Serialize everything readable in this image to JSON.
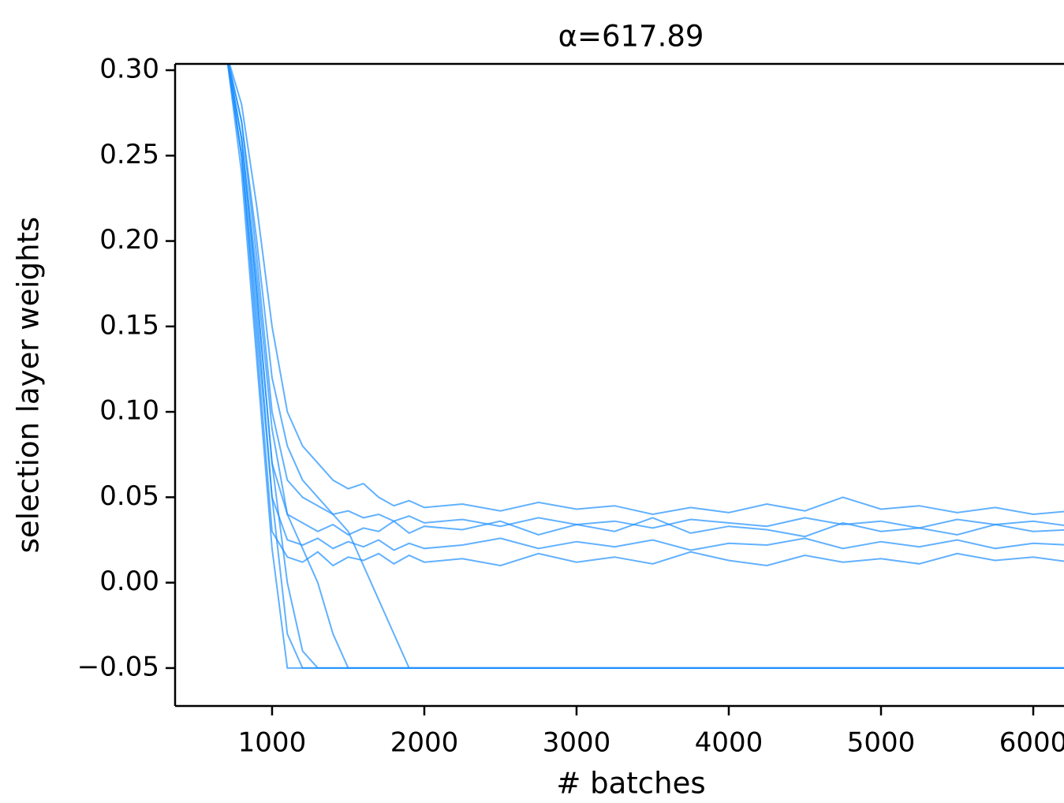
{
  "chart_data": {
    "type": "line",
    "title": "α=617.89",
    "x_label": "# batches",
    "y_label": "selection layer weights",
    "color": "#1e90ff",
    "x": [
      700,
      800,
      900,
      1000,
      1100,
      1200,
      1300,
      1400,
      1500,
      1600,
      1700,
      1800,
      1900,
      2000,
      2250,
      2500,
      2750,
      3000,
      3250,
      3500,
      3750,
      4000,
      4250,
      4500,
      4750,
      5000,
      5250,
      5500,
      5750,
      6000,
      6250
    ],
    "series": [
      {
        "values": [
          0.31,
          0.24,
          0.13,
          0.02,
          -0.05,
          -0.05,
          -0.05,
          -0.05,
          -0.05,
          -0.05,
          -0.05,
          -0.05,
          -0.05,
          -0.05,
          -0.05,
          -0.05,
          -0.05,
          -0.05,
          -0.05,
          -0.05,
          -0.05,
          -0.05,
          -0.05,
          -0.05,
          -0.05,
          -0.05,
          -0.05,
          -0.05,
          -0.05,
          -0.05,
          -0.05
        ]
      },
      {
        "values": [
          0.31,
          0.25,
          0.16,
          0.05,
          -0.03,
          -0.05,
          -0.05,
          -0.05,
          -0.05,
          -0.05,
          -0.05,
          -0.05,
          -0.05,
          -0.05,
          -0.05,
          -0.05,
          -0.05,
          -0.05,
          -0.05,
          -0.05,
          -0.05,
          -0.05,
          -0.05,
          -0.05,
          -0.05,
          -0.05,
          -0.05,
          -0.05,
          -0.05,
          -0.05,
          -0.05
        ]
      },
      {
        "values": [
          0.31,
          0.26,
          0.18,
          0.09,
          0.04,
          0.02,
          0.0,
          -0.03,
          -0.05,
          -0.05,
          -0.05,
          -0.05,
          -0.05,
          -0.05,
          -0.05,
          -0.05,
          -0.05,
          -0.05,
          -0.05,
          -0.05,
          -0.05,
          -0.05,
          -0.05,
          -0.05,
          -0.05,
          -0.05,
          -0.05,
          -0.05,
          -0.05,
          -0.05,
          -0.05
        ]
      },
      {
        "values": [
          0.31,
          0.27,
          0.2,
          0.12,
          0.08,
          0.06,
          0.05,
          0.04,
          0.03,
          0.01,
          -0.01,
          -0.03,
          -0.05,
          -0.05,
          -0.05,
          -0.05,
          -0.05,
          -0.05,
          -0.05,
          -0.05,
          -0.05,
          -0.05,
          -0.05,
          -0.05,
          -0.05,
          -0.05,
          -0.05,
          -0.05,
          -0.05,
          -0.05,
          -0.05
        ]
      },
      {
        "values": [
          0.31,
          0.26,
          0.17,
          0.07,
          0.04,
          0.035,
          0.03,
          0.034,
          0.028,
          0.032,
          0.03,
          0.036,
          0.029,
          0.033,
          0.031,
          0.036,
          0.028,
          0.034,
          0.03,
          0.038,
          0.029,
          0.033,
          0.031,
          0.027,
          0.035,
          0.03,
          0.032,
          0.028,
          0.034,
          0.03,
          0.031
        ]
      },
      {
        "values": [
          0.31,
          0.25,
          0.14,
          0.03,
          0.015,
          0.012,
          0.018,
          0.01,
          0.015,
          0.013,
          0.017,
          0.011,
          0.016,
          0.012,
          0.014,
          0.01,
          0.017,
          0.012,
          0.015,
          0.011,
          0.018,
          0.013,
          0.01,
          0.016,
          0.012,
          0.014,
          0.011,
          0.017,
          0.013,
          0.015,
          0.012
        ]
      },
      {
        "values": [
          0.31,
          0.28,
          0.22,
          0.15,
          0.1,
          0.08,
          0.07,
          0.06,
          0.055,
          0.058,
          0.05,
          0.045,
          0.048,
          0.044,
          0.046,
          0.042,
          0.047,
          0.043,
          0.045,
          0.04,
          0.044,
          0.041,
          0.046,
          0.042,
          0.05,
          0.043,
          0.045,
          0.041,
          0.044,
          0.04,
          0.042
        ]
      },
      {
        "values": [
          0.31,
          0.25,
          0.15,
          0.05,
          0.025,
          0.022,
          0.026,
          0.02,
          0.024,
          0.021,
          0.025,
          0.019,
          0.023,
          0.02,
          0.022,
          0.026,
          0.02,
          0.024,
          0.021,
          0.025,
          0.019,
          0.023,
          0.022,
          0.026,
          0.02,
          0.024,
          0.021,
          0.025,
          0.02,
          0.023,
          0.022
        ]
      },
      {
        "values": [
          0.31,
          0.27,
          0.19,
          0.1,
          0.06,
          0.05,
          0.045,
          0.04,
          0.042,
          0.038,
          0.04,
          0.036,
          0.039,
          0.035,
          0.037,
          0.033,
          0.038,
          0.034,
          0.036,
          0.032,
          0.037,
          0.035,
          0.033,
          0.038,
          0.034,
          0.036,
          0.032,
          0.037,
          0.034,
          0.036,
          0.033
        ]
      },
      {
        "values": [
          0.31,
          0.26,
          0.17,
          0.07,
          0.0,
          -0.04,
          -0.05,
          -0.05,
          -0.05,
          -0.05,
          -0.05,
          -0.05,
          -0.05,
          -0.05,
          -0.05,
          -0.05,
          -0.05,
          -0.05,
          -0.05,
          -0.05,
          -0.05,
          -0.05,
          -0.05,
          -0.05,
          -0.05,
          -0.05,
          -0.05,
          -0.05,
          -0.05,
          -0.05,
          -0.05
        ]
      }
    ],
    "xlim": [
      363,
      6202
    ],
    "xticks": [
      1000,
      2000,
      3000,
      4000,
      5000,
      6000
    ],
    "ylim": [
      -0.0722,
      0.3037
    ],
    "yticks": [
      {
        "value": -0.05,
        "label": "−0.05"
      },
      {
        "value": 0,
        "label": "0.00"
      },
      0.05,
      {
        "value": 0.1,
        "label": "0.10"
      },
      0.15,
      {
        "value": 0.2,
        "label": "0.20"
      },
      0.25,
      {
        "value": 0.3,
        "label": "0.30"
      }
    ]
  }
}
